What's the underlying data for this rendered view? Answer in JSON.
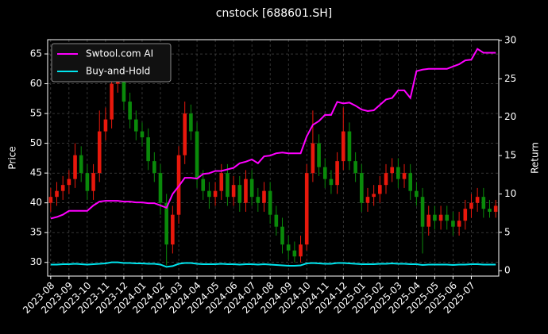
{
  "chart_data": {
    "type": "candlestick",
    "title": "cnstock [688601.SH]",
    "y_label": "Price",
    "y2_label": "Return",
    "categories": [
      "2023-08",
      null,
      null,
      "2023-09",
      null,
      null,
      "2023-10",
      null,
      null,
      "2023-11",
      null,
      null,
      "2023-12",
      null,
      null,
      "2024-01",
      null,
      null,
      "2024-02",
      null,
      null,
      "2024-03",
      null,
      null,
      "2024-04",
      null,
      null,
      "2024-05",
      null,
      null,
      "2024-06",
      null,
      null,
      "2024-07",
      null,
      null,
      "2024-08",
      null,
      null,
      "2024-09",
      null,
      null,
      "2024-10",
      null,
      null,
      "2024-11",
      null,
      null,
      "2024-12",
      null,
      null,
      "2025-01",
      null,
      null,
      "2025-02",
      null,
      null,
      "2025-03",
      null,
      null,
      "2025-04",
      null,
      null,
      "2025-05",
      null,
      null,
      "2025-06",
      null,
      null,
      "2025-07",
      null,
      null,
      null,
      null
    ],
    "open": [
      40,
      41,
      42,
      43,
      44,
      48,
      45,
      42,
      45,
      52,
      54,
      60,
      62,
      57,
      54,
      52,
      51,
      47,
      45,
      40,
      33,
      38,
      48,
      55,
      52,
      44,
      42,
      41,
      42,
      45,
      41,
      43,
      40,
      44,
      41,
      40,
      42,
      38,
      36,
      33,
      32,
      31,
      33,
      45,
      50,
      46,
      44,
      43,
      47,
      52,
      47,
      45,
      40,
      41,
      41.5,
      43,
      45,
      46,
      44,
      45,
      42,
      41,
      36,
      38,
      37,
      38,
      37,
      36,
      37,
      39,
      40,
      41,
      39,
      38.5
    ],
    "high": [
      42.5,
      43.5,
      44.5,
      45.5,
      50,
      49.5,
      46.5,
      46.5,
      55.5,
      56,
      63,
      64,
      63.5,
      58.5,
      55.5,
      53.5,
      52.5,
      48.5,
      46.5,
      41.5,
      39.5,
      49.5,
      57,
      56.5,
      53.5,
      45.5,
      43.5,
      43.5,
      46.5,
      46.5,
      44.5,
      44.5,
      45.5,
      45.5,
      42.5,
      43.5,
      43.5,
      39.5,
      37.5,
      34.5,
      33.5,
      34.5,
      46.5,
      55.5,
      51.5,
      47.5,
      45.5,
      48.5,
      56,
      53.5,
      48.5,
      46.5,
      42.5,
      43,
      44.5,
      46.5,
      47.5,
      47.5,
      46.5,
      46.5,
      43.5,
      42.5,
      39.5,
      39.5,
      39.5,
      39.5,
      38.5,
      38.5,
      40.5,
      41.5,
      42.5,
      42.5,
      40.5,
      40.5
    ],
    "low": [
      38.5,
      39.5,
      40.5,
      41.5,
      42.5,
      43.5,
      40.5,
      40.5,
      43.5,
      50.5,
      52.5,
      58.5,
      55.5,
      52.5,
      50.5,
      49.5,
      45.5,
      43.5,
      38,
      29.5,
      31.5,
      36.5,
      46.5,
      50.5,
      42.5,
      40.5,
      39,
      39.5,
      40.5,
      39.5,
      39.5,
      38.5,
      38.5,
      39.5,
      38.5,
      38.5,
      36.5,
      34.5,
      31.5,
      30.5,
      30,
      30,
      32,
      43.5,
      44.5,
      42.5,
      41.5,
      41.5,
      45.5,
      45.5,
      43.5,
      38.5,
      38.5,
      39.5,
      40,
      41.5,
      43.5,
      42.5,
      42.5,
      40.5,
      39.5,
      31.5,
      34.5,
      35.5,
      35.5,
      35.5,
      34.5,
      34.5,
      35.5,
      37.5,
      38.5,
      37.5,
      37.5,
      37.5
    ],
    "close": [
      41,
      42,
      43,
      44,
      48,
      45,
      42,
      45,
      52,
      54,
      60,
      62,
      57,
      54,
      52,
      51,
      47,
      45,
      40,
      33,
      38,
      48,
      55,
      52,
      44,
      42,
      41,
      42,
      45,
      41,
      43,
      40,
      44,
      41,
      40,
      42,
      38,
      36,
      33,
      32,
      31,
      33,
      45,
      50,
      46,
      44,
      43,
      47,
      52,
      47,
      45,
      40,
      41,
      41.5,
      43,
      45,
      46,
      44,
      45,
      42,
      41,
      36,
      38,
      37,
      38,
      37,
      36,
      37,
      39,
      40,
      41,
      39,
      38.5,
      39.5
    ],
    "up_color": "#e8180c",
    "down_color": "#0a8a0a",
    "series": [
      {
        "name": "Swtool.com AI",
        "color": "#ff00ff",
        "axis": "y2",
        "values": [
          6.8,
          7.0,
          7.3,
          7.8,
          7.8,
          7.8,
          7.8,
          8.5,
          9.0,
          9.1,
          9.1,
          9.1,
          9.0,
          9.0,
          8.9,
          8.9,
          8.8,
          8.8,
          8.5,
          8.2,
          10.0,
          11.0,
          12.1,
          12.1,
          12.0,
          12.6,
          12.7,
          13.0,
          13.0,
          13.2,
          13.4,
          14.0,
          14.2,
          14.5,
          14.0,
          14.9,
          15.0,
          15.3,
          15.4,
          15.3,
          15.3,
          15.3,
          17.5,
          19.0,
          19.5,
          20.3,
          20.3,
          22.0,
          21.8,
          21.9,
          21.5,
          21.0,
          20.8,
          20.9,
          21.6,
          22.3,
          22.5,
          23.5,
          23.5,
          22.5,
          26.0,
          26.2,
          26.3,
          26.3,
          26.3,
          26.3,
          26.6,
          26.9,
          27.4,
          27.5,
          28.9,
          28.4,
          28.4,
          28.4
        ]
      },
      {
        "name": "Buy-and-Hold",
        "color": "#00e5ee",
        "axis": "y2",
        "values": [
          0.8,
          0.8,
          0.85,
          0.85,
          0.9,
          0.85,
          0.8,
          0.85,
          0.9,
          0.95,
          1.1,
          1.1,
          1.0,
          1.0,
          0.95,
          0.95,
          0.9,
          0.9,
          0.8,
          0.5,
          0.6,
          0.9,
          1.0,
          1.0,
          0.9,
          0.85,
          0.85,
          0.85,
          0.9,
          0.85,
          0.85,
          0.8,
          0.85,
          0.85,
          0.8,
          0.85,
          0.8,
          0.75,
          0.7,
          0.65,
          0.65,
          0.7,
          0.95,
          1.0,
          0.95,
          0.9,
          0.9,
          1.0,
          1.0,
          0.95,
          0.9,
          0.85,
          0.85,
          0.85,
          0.9,
          0.9,
          0.95,
          0.9,
          0.9,
          0.85,
          0.85,
          0.75,
          0.8,
          0.8,
          0.8,
          0.8,
          0.75,
          0.8,
          0.8,
          0.85,
          0.85,
          0.8,
          0.8,
          0.8
        ]
      }
    ],
    "ylim": [
      27.7,
      67.4
    ],
    "yticks": [
      30,
      35,
      40,
      45,
      50,
      55,
      60,
      65
    ],
    "y2lim": [
      -0.7,
      30.1
    ],
    "y2ticks": [
      0,
      5,
      10,
      15,
      20,
      25,
      30
    ],
    "grid": true,
    "legend": "upper left"
  }
}
